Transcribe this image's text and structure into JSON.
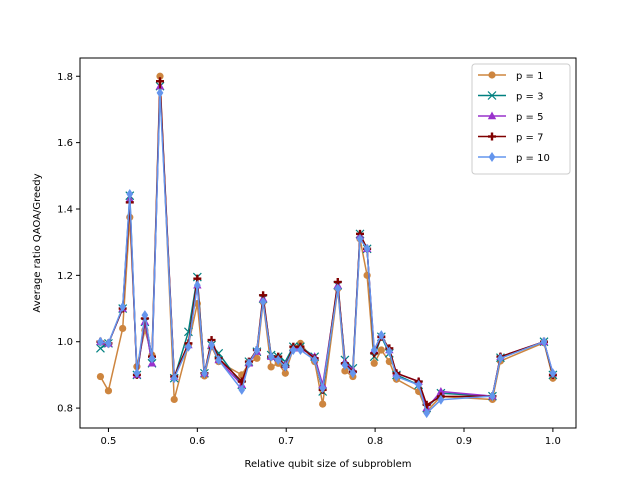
{
  "chart_data": {
    "type": "line",
    "xlabel": "Relative qubit size of subproblem",
    "ylabel": "Average ratio QAOA/Greedy",
    "xlim": [
      0.468,
      1.026
    ],
    "ylim": [
      0.74,
      1.855
    ],
    "xticks": [
      0.5,
      0.6,
      0.7,
      0.8,
      0.9,
      1.0
    ],
    "xtick_labels": [
      "0.5",
      "0.6",
      "0.7",
      "0.8",
      "0.9",
      "1.0"
    ],
    "yticks": [
      0.8,
      1.0,
      1.2,
      1.4,
      1.6,
      1.8
    ],
    "ytick_labels": [
      "0.8",
      "1.0",
      "1.2",
      "1.4",
      "1.6",
      "1.8"
    ],
    "grid": false,
    "legend_position": "top-right",
    "x": [
      0.491,
      0.5,
      0.516,
      0.524,
      0.532,
      0.541,
      0.549,
      0.558,
      0.574,
      0.59,
      0.6,
      0.608,
      0.616,
      0.624,
      0.65,
      0.658,
      0.667,
      0.674,
      0.683,
      0.691,
      0.699,
      0.708,
      0.716,
      0.732,
      0.741,
      0.758,
      0.766,
      0.775,
      0.783,
      0.791,
      0.799,
      0.807,
      0.816,
      0.824,
      0.849,
      0.858,
      0.874,
      0.932,
      0.941,
      0.99,
      1.0
    ],
    "series": [
      {
        "name": "p = 1",
        "color": "#cd853f",
        "marker": "circle",
        "values": [
          0.895,
          0.852,
          1.04,
          1.375,
          0.925,
          1.035,
          0.96,
          1.8,
          0.826,
          0.99,
          1.115,
          0.897,
          0.985,
          0.94,
          0.9,
          0.935,
          0.95,
          1.12,
          0.924,
          0.935,
          0.905,
          0.98,
          0.995,
          0.94,
          0.812,
          1.16,
          0.912,
          0.895,
          1.31,
          1.2,
          0.935,
          0.975,
          0.94,
          0.887,
          0.85,
          0.79,
          0.835,
          0.826,
          0.942,
          0.997,
          0.89
        ]
      },
      {
        "name": "p = 3",
        "color": "#008080",
        "marker": "x",
        "values": [
          0.98,
          0.995,
          1.1,
          1.44,
          0.9,
          1.06,
          0.935,
          1.77,
          0.89,
          1.03,
          1.195,
          0.905,
          0.99,
          0.965,
          0.87,
          0.94,
          0.97,
          1.13,
          0.96,
          0.955,
          0.94,
          0.985,
          0.985,
          0.955,
          0.85,
          1.17,
          0.945,
          0.92,
          1.325,
          1.28,
          0.955,
          1.015,
          0.965,
          0.9,
          0.87,
          0.8,
          0.845,
          0.836,
          0.952,
          1.0,
          0.9
        ]
      },
      {
        "name": "p = 5",
        "color": "#9932cc",
        "marker": "triangle",
        "values": [
          1.0,
          0.995,
          1.1,
          1.43,
          0.9,
          1.06,
          0.935,
          1.77,
          0.895,
          0.99,
          1.17,
          0.905,
          0.99,
          0.945,
          0.87,
          0.935,
          0.97,
          1.13,
          0.955,
          0.95,
          0.93,
          0.98,
          0.98,
          0.955,
          0.87,
          1.17,
          0.94,
          0.915,
          1.32,
          1.28,
          0.975,
          1.02,
          0.975,
          0.905,
          0.88,
          0.8,
          0.85,
          0.836,
          0.955,
          1.0,
          0.905
        ]
      },
      {
        "name": "p = 7",
        "color": "#800000",
        "marker": "plus",
        "values": [
          1.0,
          0.995,
          1.1,
          1.42,
          0.9,
          1.07,
          0.955,
          1.785,
          0.895,
          0.995,
          1.19,
          0.905,
          1.005,
          0.95,
          0.88,
          0.94,
          0.975,
          1.14,
          0.955,
          0.955,
          0.925,
          0.985,
          0.985,
          0.95,
          0.855,
          1.18,
          0.935,
          0.91,
          1.325,
          1.28,
          0.965,
          1.015,
          0.98,
          0.905,
          0.88,
          0.81,
          0.835,
          0.836,
          0.955,
          1.0,
          0.9
        ]
      },
      {
        "name": "p = 10",
        "color": "#6495ed",
        "marker": "diamond",
        "values": [
          1.0,
          0.995,
          1.105,
          1.445,
          0.905,
          1.08,
          0.95,
          1.75,
          0.89,
          0.985,
          1.17,
          0.905,
          0.99,
          0.945,
          0.855,
          0.935,
          0.975,
          1.12,
          0.955,
          0.945,
          0.925,
          0.975,
          0.975,
          0.945,
          0.86,
          1.16,
          0.93,
          0.905,
          1.31,
          1.28,
          0.975,
          1.02,
          0.97,
          0.895,
          0.87,
          0.785,
          0.825,
          0.836,
          0.95,
          1.0,
          0.905
        ]
      }
    ]
  }
}
